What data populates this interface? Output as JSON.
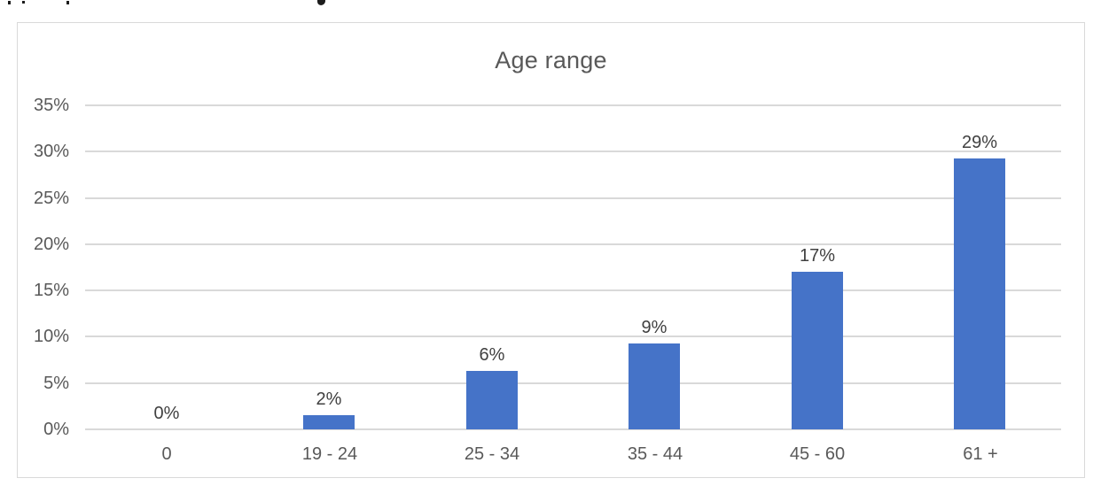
{
  "chart_data": {
    "type": "bar",
    "title": "Age range",
    "categories": [
      "0",
      "19 - 24",
      "25 - 34",
      "35 - 44",
      "45 - 60",
      "61 +"
    ],
    "values": [
      0,
      2,
      6,
      9,
      17,
      29
    ],
    "data_labels": [
      "0%",
      "2%",
      "6%",
      "9%",
      "17%",
      "29%"
    ],
    "bar_heights_pct": [
      0,
      1.5,
      6.3,
      9.3,
      17.0,
      29.3
    ],
    "y_ticks": [
      "0%",
      "5%",
      "10%",
      "15%",
      "20%",
      "25%",
      "30%",
      "35%"
    ],
    "y_step": 5,
    "ylim": [
      0,
      35
    ],
    "xlabel": "",
    "ylabel": "",
    "grid": true,
    "legend": "none",
    "colors": {
      "bar": "#4573C8",
      "gridline": "#D9D9D9",
      "frame_border": "#D9D9D9",
      "axis_text": "#595959",
      "data_label_text": "#404040",
      "title_text": "#595959",
      "background": "#FFFFFF"
    }
  }
}
